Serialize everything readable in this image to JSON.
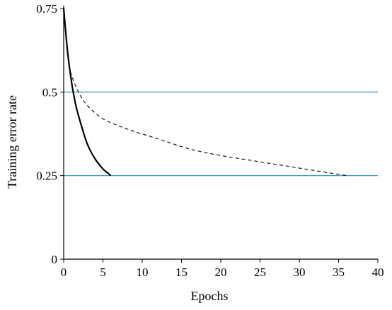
{
  "chart_data": {
    "type": "line",
    "title": "",
    "xlabel": "Epochs",
    "ylabel": "Training error rate",
    "xlim": [
      0,
      40
    ],
    "ylim": [
      0,
      0.75
    ],
    "x_ticks": [
      0,
      5,
      10,
      15,
      20,
      25,
      30,
      35,
      40
    ],
    "y_ticks": [
      0,
      0.25,
      0.5,
      0.75
    ],
    "x_tick_labels": [
      "0",
      "5",
      "10",
      "15",
      "20",
      "25",
      "30",
      "35",
      "40"
    ],
    "y_tick_labels": [
      "0",
      "0.25",
      "0.5",
      "0.75"
    ],
    "grid": false,
    "reference_lines": [
      {
        "y": 0.5,
        "color": "#2b8fb3"
      },
      {
        "y": 0.25,
        "color": "#2b8fb3"
      }
    ],
    "series": [
      {
        "style": "solid",
        "color": "#000000",
        "x": [
          0,
          0.5,
          1,
          1.5,
          2,
          3,
          4,
          5,
          5.5,
          6
        ],
        "y": [
          0.75,
          0.62,
          0.53,
          0.465,
          0.42,
          0.345,
          0.3,
          0.27,
          0.26,
          0.25
        ]
      },
      {
        "style": "dashed",
        "color": "#000000",
        "x": [
          0,
          0.5,
          1,
          2,
          3,
          5,
          8,
          12,
          16,
          20,
          24,
          28,
          32,
          36
        ],
        "y": [
          0.75,
          0.61,
          0.55,
          0.495,
          0.46,
          0.42,
          0.39,
          0.36,
          0.33,
          0.31,
          0.295,
          0.28,
          0.265,
          0.25
        ]
      }
    ]
  }
}
